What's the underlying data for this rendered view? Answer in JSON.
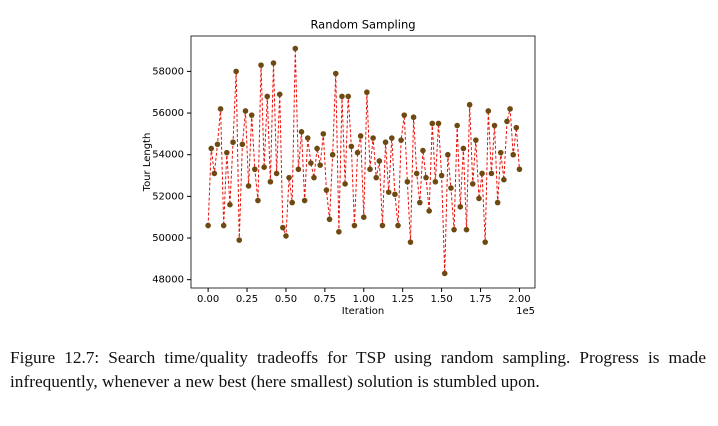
{
  "chart_data": {
    "type": "line",
    "title": "Random Sampling",
    "xlabel": "Iteration",
    "ylabel": "Tour Length",
    "x_offset_label": "1e5",
    "x": [
      0,
      0.02,
      0.04,
      0.06,
      0.08,
      0.1,
      0.12,
      0.14,
      0.16,
      0.18,
      0.2,
      0.22,
      0.24,
      0.26,
      0.28,
      0.3,
      0.32,
      0.34,
      0.36,
      0.38,
      0.4,
      0.42,
      0.44,
      0.46,
      0.48,
      0.5,
      0.52,
      0.54,
      0.56,
      0.58,
      0.6,
      0.62,
      0.64,
      0.66,
      0.68,
      0.7,
      0.72,
      0.74,
      0.76,
      0.78,
      0.8,
      0.82,
      0.84,
      0.86,
      0.88,
      0.9,
      0.92,
      0.94,
      0.96,
      0.98,
      1,
      1.02,
      1.04,
      1.06,
      1.08,
      1.1,
      1.12,
      1.14,
      1.16,
      1.18,
      1.2,
      1.22,
      1.24,
      1.26,
      1.28,
      1.3,
      1.32,
      1.34,
      1.36,
      1.38,
      1.4,
      1.42,
      1.44,
      1.46,
      1.48,
      1.5,
      1.52,
      1.54,
      1.56,
      1.58,
      1.6,
      1.62,
      1.64,
      1.66,
      1.68,
      1.7,
      1.72,
      1.74,
      1.76,
      1.78,
      1.8,
      1.82,
      1.84,
      1.86,
      1.88,
      1.9,
      1.92,
      1.94,
      1.96,
      1.98,
      2
    ],
    "series": [
      {
        "color": "#e8120c",
        "marker_color": "#6e4a12",
        "values": [
          50600,
          54300,
          53100,
          54500,
          56200,
          50600,
          54100,
          51600,
          54600,
          58000,
          49900,
          54500,
          56100,
          52500,
          55900,
          53300,
          51800,
          58300,
          53400,
          56800,
          52700,
          58400,
          53100,
          56900,
          50500,
          50100,
          52900,
          51700,
          59100,
          53300,
          55100,
          51800,
          54800,
          53600,
          52900,
          54300,
          53500,
          55000,
          52300,
          50900,
          54000,
          57900,
          50300,
          56800,
          52600,
          56800,
          54400,
          50600,
          54100,
          54900,
          51000,
          57000,
          53300,
          54800,
          52900,
          53700,
          50600,
          54600,
          52200,
          54800,
          52100,
          50600,
          54700,
          55900,
          52700,
          49800,
          55800,
          53100,
          51700,
          54200,
          52900,
          51300,
          55500,
          52700,
          55500,
          53000,
          48300,
          54000,
          52400,
          50400,
          55400,
          51500,
          54300,
          50400,
          56400,
          52600,
          54700,
          51900,
          53100,
          49800,
          56100,
          53100,
          55400,
          51700,
          54100,
          52800,
          55600,
          56200,
          54000,
          55300,
          53300
        ]
      }
    ],
    "xlim": [
      -0.11,
      2.1
    ],
    "ylim": [
      47600,
      59700
    ],
    "xticks": [
      {
        "value": 0,
        "label": "0.00"
      },
      {
        "value": 0.25,
        "label": "0.25"
      },
      {
        "value": 0.5,
        "label": "0.50"
      },
      {
        "value": 0.75,
        "label": "0.75"
      },
      {
        "value": 1,
        "label": "1.00"
      },
      {
        "value": 1.25,
        "label": "1.25"
      },
      {
        "value": 1.5,
        "label": "1.50"
      },
      {
        "value": 1.75,
        "label": "1.75"
      },
      {
        "value": 2,
        "label": "2.00"
      }
    ],
    "yticks": [
      48000,
      50000,
      52000,
      54000,
      56000,
      58000
    ]
  },
  "caption": "Figure 12.7: Search time/quality tradeoffs for TSP using random sampling. Progress is made infrequently, whenever a new best (here smallest) solution is stumbled upon."
}
